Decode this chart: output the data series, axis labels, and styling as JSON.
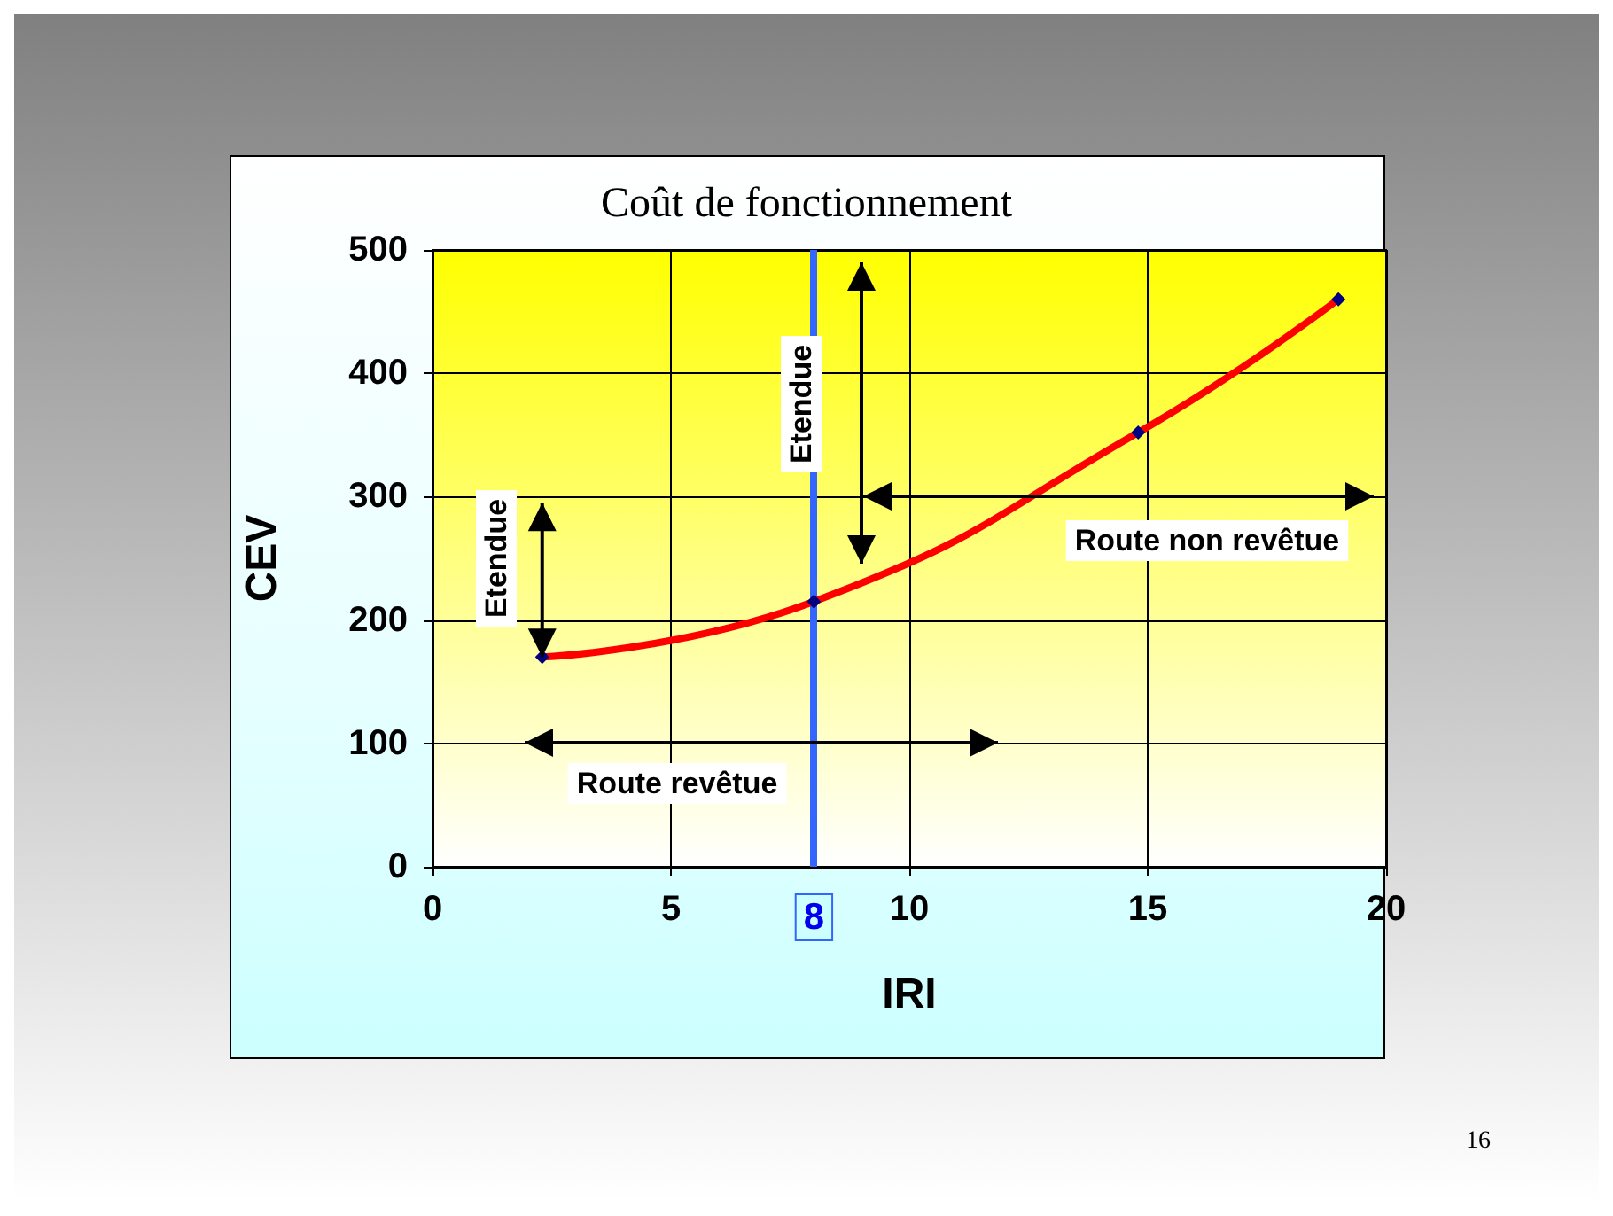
{
  "chart_data": {
    "type": "line",
    "title": "Coût de fonctionnement",
    "xlabel": "IRI",
    "ylabel": "CEV",
    "x": [
      2.3,
      8,
      14.8,
      19
    ],
    "series": [
      {
        "color": "#ff0000",
        "values": [
          170,
          215,
          352,
          460
        ]
      }
    ],
    "xlim": [
      0,
      20
    ],
    "xticks": [
      0,
      5,
      10,
      15,
      20
    ],
    "ylim": [
      0,
      500
    ],
    "yticks": [
      0,
      100,
      200,
      300,
      400,
      500
    ],
    "grid": true,
    "marker": "diamond",
    "line_style": "solid",
    "ref_lines": [
      {
        "axis": "x",
        "value": 8,
        "label": "8",
        "color": "#3366ff"
      }
    ],
    "annotations": [
      {
        "text": "Etendue",
        "x": 2.3,
        "y": 170
      },
      "Etendue",
      "Route non revêtue",
      "Route revêtue",
      "16"
    ]
  }
}
